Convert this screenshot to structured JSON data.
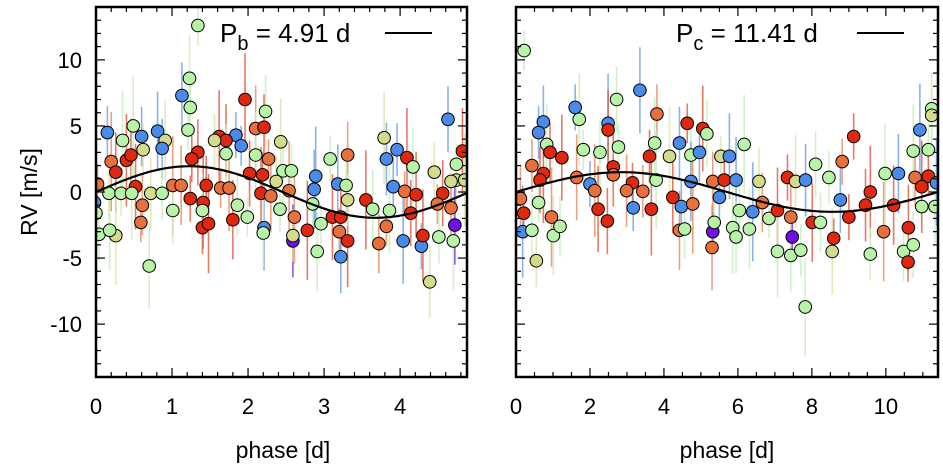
{
  "colors": {
    "b": {
      "fill": "#4a8ae8",
      "err": "#6f9fe8"
    },
    "g": {
      "fill": "#b8f4a8",
      "err": "#c6efb8"
    },
    "y": {
      "fill": "#d4dc8c",
      "err": "#dfe2a6"
    },
    "o": {
      "fill": "#e8703c",
      "err": "#e88a60"
    },
    "r": {
      "fill": "#e02810",
      "err": "#e05a40"
    },
    "p": {
      "fill": "#7010e8",
      "err": "#7a30e0"
    }
  },
  "chart_data": [
    {
      "type": "scatter",
      "title": "",
      "xlabel": "phase [d]",
      "ylabel": "RV [m/s]",
      "xlim": [
        0,
        4.88
      ],
      "ylim": [
        -14,
        14
      ],
      "xticks": [
        "0",
        "1",
        "2",
        "3",
        "4"
      ],
      "xtick_values": [
        0,
        1,
        2,
        3,
        4
      ],
      "yticks": [
        "-10",
        "-5",
        "0",
        "5",
        "10"
      ],
      "ytick_values": [
        -10,
        -5,
        0,
        5,
        10
      ],
      "legend": {
        "label_main": "P",
        "label_sub": "b",
        "label_rest": " = 4.91 d",
        "placement": "top-right"
      },
      "model": {
        "type": "sine",
        "period": 4.91,
        "amplitude": 1.95,
        "offset": 0
      },
      "typical_error": 2.5,
      "points": [
        [
          1.34,
          12.6,
          "g"
        ],
        [
          1.23,
          8.6,
          "g"
        ],
        [
          1.13,
          7.3,
          "b"
        ],
        [
          1.24,
          6.4,
          "g"
        ],
        [
          1.96,
          7.0,
          "r"
        ],
        [
          2.23,
          6.1,
          "g"
        ],
        [
          0.15,
          4.5,
          "b"
        ],
        [
          0.49,
          5.0,
          "g"
        ],
        [
          0.81,
          4.6,
          "b"
        ],
        [
          0.6,
          4.2,
          "b"
        ],
        [
          1.21,
          4.7,
          "g"
        ],
        [
          2.1,
          4.8,
          "o"
        ],
        [
          2.21,
          4.9,
          "r"
        ],
        [
          1.84,
          4.3,
          "b"
        ],
        [
          1.62,
          4.2,
          "r"
        ],
        [
          1.71,
          3.9,
          "r"
        ],
        [
          1.56,
          3.9,
          "y"
        ],
        [
          0.35,
          3.9,
          "g"
        ],
        [
          0.91,
          3.9,
          "y"
        ],
        [
          0.87,
          3.3,
          "b"
        ],
        [
          1.91,
          3.5,
          "b"
        ],
        [
          2.43,
          3.8,
          "y"
        ],
        [
          1.34,
          3.0,
          "r"
        ],
        [
          1.26,
          2.5,
          "r"
        ],
        [
          0.4,
          2.4,
          "r"
        ],
        [
          0.46,
          2.8,
          "r"
        ],
        [
          0.62,
          3.2,
          "y"
        ],
        [
          0.2,
          2.3,
          "o"
        ],
        [
          0.26,
          1.5,
          "r"
        ],
        [
          1.71,
          2.9,
          "g"
        ],
        [
          2.27,
          2.5,
          "o"
        ],
        [
          2.1,
          2.8,
          "g"
        ],
        [
          3.31,
          2.8,
          "o"
        ],
        [
          3.08,
          2.5,
          "g"
        ],
        [
          3.79,
          4.1,
          "y"
        ],
        [
          3.82,
          2.5,
          "b"
        ],
        [
          3.96,
          3.2,
          "b"
        ],
        [
          4.09,
          2.6,
          "r"
        ],
        [
          4.17,
          1.9,
          "g"
        ],
        [
          4.45,
          1.5,
          "y"
        ],
        [
          4.74,
          2.1,
          "g"
        ],
        [
          4.82,
          3.1,
          "r"
        ],
        [
          4.63,
          5.5,
          "b"
        ],
        [
          4.74,
          0.9,
          "y"
        ],
        [
          4.85,
          0.9,
          "y"
        ],
        [
          2.46,
          1.6,
          "g"
        ],
        [
          2.57,
          1.6,
          "g"
        ],
        [
          2.89,
          1.2,
          "b"
        ],
        [
          3.18,
          0.6,
          "b"
        ],
        [
          3.29,
          0.5,
          "g"
        ],
        [
          0.02,
          0.6,
          "o"
        ],
        [
          0.52,
          0.4,
          "r"
        ],
        [
          0.17,
          -0.1,
          "g"
        ],
        [
          0.33,
          -0.1,
          "g"
        ],
        [
          0.47,
          -0.1,
          "g"
        ],
        [
          0.72,
          -0.1,
          "y"
        ],
        [
          0.87,
          -0.1,
          "g"
        ],
        [
          1.01,
          0.5,
          "o"
        ],
        [
          1.12,
          0.5,
          "o"
        ],
        [
          1.45,
          0.5,
          "r"
        ],
        [
          1.64,
          0.3,
          "o"
        ],
        [
          1.75,
          0.3,
          "o"
        ],
        [
          2.02,
          1.4,
          "r"
        ],
        [
          2.19,
          1.3,
          "r"
        ],
        [
          2.17,
          -0.1,
          "r"
        ],
        [
          2.3,
          -0.3,
          "o"
        ],
        [
          2.37,
          0.8,
          "y"
        ],
        [
          2.54,
          0.1,
          "o"
        ],
        [
          2.87,
          0.2,
          "b"
        ],
        [
          3.91,
          0.4,
          "b"
        ],
        [
          4.06,
          0.05,
          "o"
        ],
        [
          4.21,
          -0.2,
          "r"
        ],
        [
          4.56,
          -0.1,
          "r"
        ],
        [
          4.67,
          0.8,
          "y"
        ],
        [
          -0.02,
          -0.8,
          "b"
        ],
        [
          0,
          -1.6,
          "g"
        ],
        [
          0.04,
          -3.2,
          "g"
        ],
        [
          0.26,
          -3.3,
          "y"
        ],
        [
          0.18,
          -2.9,
          "g"
        ],
        [
          0.61,
          -1.0,
          "o"
        ],
        [
          0.59,
          -2.3,
          "o"
        ],
        [
          0.7,
          -5.6,
          "g"
        ],
        [
          1.01,
          -1.4,
          "g"
        ],
        [
          1.24,
          -0.5,
          "r"
        ],
        [
          1.41,
          -0.8,
          "r"
        ],
        [
          1.4,
          -1.4,
          "g"
        ],
        [
          1.4,
          -2.7,
          "r"
        ],
        [
          1.48,
          -2.4,
          "r"
        ],
        [
          1.8,
          -2.1,
          "r"
        ],
        [
          1.86,
          -1.0,
          "g"
        ],
        [
          1.99,
          -1.9,
          "g"
        ],
        [
          2.21,
          -2.7,
          "b"
        ],
        [
          2.2,
          -3.1,
          "g"
        ],
        [
          2.42,
          -1.3,
          "g"
        ],
        [
          2.61,
          -1.9,
          "o"
        ],
        [
          2.59,
          -3.7,
          "p"
        ],
        [
          2.59,
          -3.3,
          "y"
        ],
        [
          2.78,
          -2.9,
          "r"
        ],
        [
          2.91,
          -4.5,
          "g"
        ],
        [
          2.85,
          -0.9,
          "g"
        ],
        [
          2.96,
          -2.4,
          "g"
        ],
        [
          3.11,
          -1.9,
          "r"
        ],
        [
          3.22,
          -1.9,
          "r"
        ],
        [
          3.2,
          -3.0,
          "o"
        ],
        [
          3.31,
          -3.7,
          "r"
        ],
        [
          3.22,
          -4.9,
          "b"
        ],
        [
          3.31,
          -0.6,
          "y"
        ],
        [
          3.55,
          -0.6,
          "r"
        ],
        [
          3.64,
          -1.3,
          "g"
        ],
        [
          3.72,
          -3.9,
          "o"
        ],
        [
          3.82,
          -2.6,
          "o"
        ],
        [
          4.04,
          -3.7,
          "b"
        ],
        [
          4.14,
          -1.6,
          "r"
        ],
        [
          4.28,
          -4.1,
          "b"
        ],
        [
          4.3,
          -3.3,
          "r"
        ],
        [
          4.39,
          -6.8,
          "y"
        ],
        [
          4.51,
          -3.4,
          "g"
        ],
        [
          4.7,
          -3.7,
          "g"
        ],
        [
          4.72,
          -2.5,
          "p"
        ],
        [
          4.67,
          -1.2,
          "o"
        ],
        [
          4.49,
          -0.9,
          "o"
        ],
        [
          3.86,
          -1.4,
          "g"
        ]
      ]
    },
    {
      "type": "scatter",
      "title": "",
      "xlabel": "phase [d]",
      "ylabel": "",
      "xlim": [
        0,
        11.41
      ],
      "ylim": [
        -14,
        14
      ],
      "xticks": [
        "0",
        "2",
        "4",
        "6",
        "8",
        "10"
      ],
      "xtick_values": [
        0,
        2,
        4,
        6,
        8,
        10
      ],
      "yticks": [],
      "ytick_values": [
        -10,
        -5,
        0,
        5,
        10
      ],
      "legend": {
        "label_main": "P",
        "label_sub": "c",
        "label_rest": " = 11.41 d",
        "placement": "top-right"
      },
      "model": {
        "type": "sine",
        "period": 11.41,
        "amplitude": 1.5,
        "offset": 0
      },
      "typical_error": 2.5,
      "points": [
        [
          0.22,
          10.7,
          "g"
        ],
        [
          3.35,
          7.7,
          "b"
        ],
        [
          2.72,
          7.0,
          "g"
        ],
        [
          1.6,
          6.4,
          "b"
        ],
        [
          1.71,
          5.5,
          "g"
        ],
        [
          0.74,
          5.3,
          "b"
        ],
        [
          0.61,
          4.5,
          "b"
        ],
        [
          2.49,
          5.2,
          "b"
        ],
        [
          2.49,
          4.7,
          "r"
        ],
        [
          3.81,
          5.9,
          "o"
        ],
        [
          4.63,
          5.2,
          "r"
        ],
        [
          5.05,
          4.8,
          "r"
        ],
        [
          5.16,
          4.4,
          "g"
        ],
        [
          9.13,
          4.2,
          "r"
        ],
        [
          10.92,
          4.7,
          "b"
        ],
        [
          11.24,
          6.3,
          "g"
        ],
        [
          11.24,
          5.8,
          "y"
        ],
        [
          6.17,
          3.6,
          "g"
        ],
        [
          0.83,
          3.6,
          "g"
        ],
        [
          0.92,
          3.0,
          "r"
        ],
        [
          1.82,
          3.2,
          "g"
        ],
        [
          1.24,
          2.6,
          "r"
        ],
        [
          2.27,
          3.0,
          "g"
        ],
        [
          2.77,
          3.4,
          "g"
        ],
        [
          3.75,
          3.7,
          "g"
        ],
        [
          4.42,
          3.7,
          "b"
        ],
        [
          3.61,
          2.7,
          "r"
        ],
        [
          4.15,
          2.7,
          "y"
        ],
        [
          4.73,
          2.8,
          "g"
        ],
        [
          4.96,
          3.0,
          "b"
        ],
        [
          5.54,
          2.7,
          "y"
        ],
        [
          5.77,
          2.7,
          "b"
        ],
        [
          8.1,
          2.1,
          "g"
        ],
        [
          8.82,
          2.3,
          "o"
        ],
        [
          10.74,
          3.1,
          "g"
        ],
        [
          11.15,
          3.2,
          "g"
        ],
        [
          0.43,
          2.0,
          "o"
        ],
        [
          0.74,
          1.4,
          "r"
        ],
        [
          2.63,
          1.9,
          "r"
        ],
        [
          2.63,
          1.3,
          "o"
        ],
        [
          3.15,
          0.7,
          "r"
        ],
        [
          1.64,
          1.1,
          "o"
        ],
        [
          0.65,
          0.9,
          "r"
        ],
        [
          2.0,
          0.6,
          "b"
        ],
        [
          2.13,
          0.1,
          "o"
        ],
        [
          2.99,
          0.1,
          "o"
        ],
        [
          3.43,
          0.05,
          "o"
        ],
        [
          3.79,
          0.9,
          "g"
        ],
        [
          4.73,
          0.8,
          "b"
        ],
        [
          5.32,
          0.8,
          "o"
        ],
        [
          5.63,
          0.9,
          "r"
        ],
        [
          5.95,
          0.9,
          "b"
        ],
        [
          6.57,
          0.8,
          "y"
        ],
        [
          7.34,
          1.1,
          "r"
        ],
        [
          7.56,
          0.8,
          "y"
        ],
        [
          7.83,
          0.9,
          "b"
        ],
        [
          8.46,
          1.1,
          "g"
        ],
        [
          9.98,
          1.4,
          "g"
        ],
        [
          10.34,
          1.4,
          "b"
        ],
        [
          10.79,
          1.1,
          "o"
        ],
        [
          11.15,
          1.2,
          "r"
        ],
        [
          11.37,
          0.7,
          "b"
        ],
        [
          0.12,
          -0.5,
          "o"
        ],
        [
          0.21,
          -1.6,
          "r"
        ],
        [
          0.18,
          -3.0,
          "b"
        ],
        [
          0.43,
          -2.9,
          "g"
        ],
        [
          0.55,
          -5.2,
          "y"
        ],
        [
          0.96,
          -1.9,
          "o"
        ],
        [
          1.01,
          -3.3,
          "g"
        ],
        [
          1.19,
          -2.6,
          "g"
        ],
        [
          0.61,
          -0.8,
          "g"
        ],
        [
          2.22,
          -1.3,
          "r"
        ],
        [
          2.47,
          -2.2,
          "r"
        ],
        [
          3.17,
          -1.2,
          "b"
        ],
        [
          3.66,
          -1.3,
          "r"
        ],
        [
          4.24,
          -0.4,
          "r"
        ],
        [
          4.47,
          -1.1,
          "b"
        ],
        [
          4.78,
          -0.9,
          "o"
        ],
        [
          4.42,
          -2.9,
          "o"
        ],
        [
          4.56,
          -2.8,
          "g"
        ],
        [
          5.32,
          -3.0,
          "p"
        ],
        [
          5.3,
          -4.2,
          "o"
        ],
        [
          5.36,
          -2.3,
          "g"
        ],
        [
          5.5,
          -0.4,
          "b"
        ],
        [
          5.86,
          -2.7,
          "g"
        ],
        [
          5.95,
          -3.4,
          "g"
        ],
        [
          6.04,
          -1.4,
          "g"
        ],
        [
          6.4,
          -1.5,
          "b"
        ],
        [
          6.31,
          -2.8,
          "g"
        ],
        [
          6.66,
          -0.8,
          "o"
        ],
        [
          6.84,
          -2.0,
          "g"
        ],
        [
          7.07,
          -1.4,
          "r"
        ],
        [
          7.43,
          -1.9,
          "o"
        ],
        [
          7.47,
          -3.4,
          "p"
        ],
        [
          7.07,
          -4.5,
          "g"
        ],
        [
          7.43,
          -4.8,
          "g"
        ],
        [
          7.7,
          -4.4,
          "g"
        ],
        [
          7.82,
          -8.7,
          "g"
        ],
        [
          8.01,
          -2.3,
          "r"
        ],
        [
          8.23,
          -2.3,
          "g"
        ],
        [
          8.59,
          -3.5,
          "r"
        ],
        [
          8.55,
          -4.5,
          "y"
        ],
        [
          8.77,
          -0.6,
          "b"
        ],
        [
          9.0,
          -1.9,
          "r"
        ],
        [
          9.58,
          0,
          "r"
        ],
        [
          9.45,
          -1.0,
          "r"
        ],
        [
          9.58,
          -4.7,
          "g"
        ],
        [
          9.94,
          -3.0,
          "o"
        ],
        [
          10.21,
          -1.0,
          "r"
        ],
        [
          10.48,
          -4.5,
          "g"
        ],
        [
          10.6,
          -5.3,
          "r"
        ],
        [
          10.61,
          -2.7,
          "r"
        ],
        [
          10.74,
          -4.0,
          "g"
        ],
        [
          10.97,
          -1.1,
          "g"
        ],
        [
          10.97,
          0.4,
          "r"
        ],
        [
          11.33,
          -1.1,
          "g"
        ]
      ]
    }
  ]
}
